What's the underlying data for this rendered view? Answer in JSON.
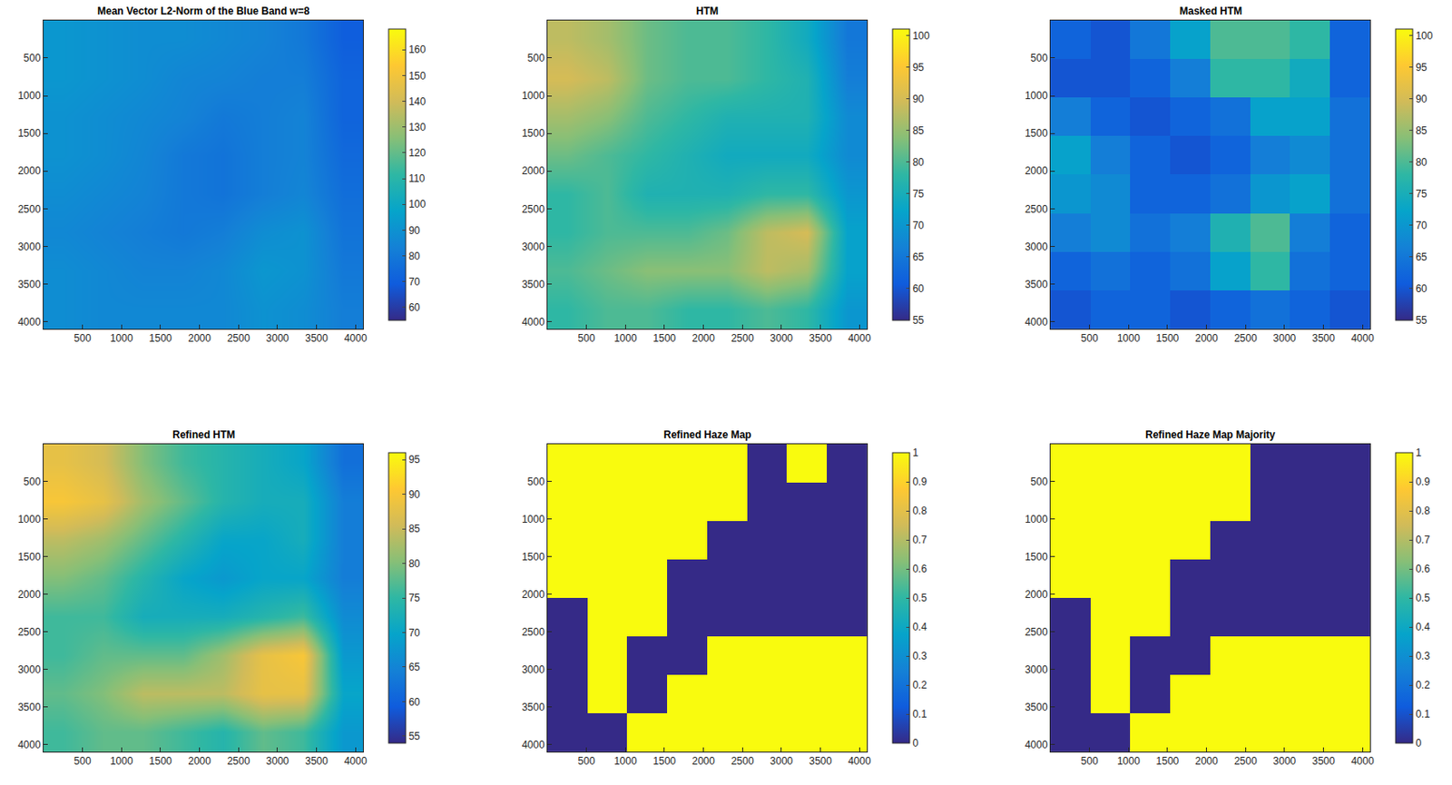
{
  "chart_data": [
    {
      "type": "heatmap",
      "title": "Mean Vector L2-Norm of the Blue Band w=8",
      "x": [
        256,
        768,
        1280,
        1792,
        2304,
        2816,
        3328,
        3840
      ],
      "y": [
        256,
        768,
        1280,
        1792,
        2304,
        2816,
        3328,
        3840
      ],
      "z": [
        [
          92,
          90,
          88,
          88,
          86,
          84,
          80,
          70
        ],
        [
          92,
          90,
          88,
          85,
          84,
          82,
          82,
          72
        ],
        [
          90,
          88,
          86,
          84,
          80,
          82,
          84,
          72
        ],
        [
          90,
          88,
          85,
          80,
          78,
          82,
          84,
          74
        ],
        [
          88,
          86,
          84,
          80,
          78,
          82,
          85,
          76
        ],
        [
          86,
          84,
          82,
          80,
          82,
          88,
          90,
          78
        ],
        [
          88,
          86,
          84,
          84,
          86,
          92,
          90,
          80
        ],
        [
          88,
          86,
          86,
          86,
          86,
          90,
          88,
          82
        ]
      ],
      "xlim": [
        1,
        4096
      ],
      "ylim": [
        4096,
        1
      ],
      "xticks": [
        500,
        1000,
        1500,
        2000,
        2500,
        3000,
        3500,
        4000
      ],
      "yticks": [
        500,
        1000,
        1500,
        2000,
        2500,
        3000,
        3500,
        4000
      ],
      "zlim": [
        55,
        168
      ],
      "zticks": [
        60,
        70,
        80,
        90,
        100,
        110,
        120,
        130,
        140,
        150,
        160
      ]
    },
    {
      "type": "heatmap",
      "title": "HTM",
      "x": [
        256,
        768,
        1280,
        1792,
        2304,
        2816,
        3328,
        3840
      ],
      "y": [
        256,
        768,
        1280,
        1792,
        2304,
        2816,
        3328,
        3840
      ],
      "z": [
        [
          88,
          86,
          82,
          80,
          80,
          78,
          74,
          65
        ],
        [
          90,
          88,
          82,
          80,
          80,
          78,
          76,
          66
        ],
        [
          86,
          84,
          80,
          78,
          76,
          76,
          76,
          68
        ],
        [
          82,
          80,
          78,
          76,
          74,
          74,
          74,
          68
        ],
        [
          78,
          80,
          76,
          76,
          76,
          78,
          78,
          70
        ],
        [
          78,
          80,
          80,
          80,
          82,
          88,
          90,
          72
        ],
        [
          80,
          82,
          84,
          84,
          84,
          88,
          86,
          72
        ],
        [
          78,
          80,
          80,
          78,
          78,
          80,
          78,
          70
        ]
      ],
      "xlim": [
        1,
        4096
      ],
      "ylim": [
        4096,
        1
      ],
      "xticks": [
        500,
        1000,
        1500,
        2000,
        2500,
        3000,
        3500,
        4000
      ],
      "yticks": [
        500,
        1000,
        1500,
        2000,
        2500,
        3000,
        3500,
        4000
      ],
      "zlim": [
        55,
        101
      ],
      "zticks": [
        55,
        60,
        65,
        70,
        75,
        80,
        85,
        90,
        95,
        100
      ]
    },
    {
      "type": "heatmap",
      "title": "Masked HTM",
      "x": [
        256,
        768,
        1280,
        1792,
        2304,
        2816,
        3328,
        3840
      ],
      "y": [
        256,
        768,
        1280,
        1792,
        2304,
        2816,
        3328,
        3840
      ],
      "z": [
        [
          62,
          60,
          65,
          72,
          80,
          80,
          78,
          62
        ],
        [
          60,
          60,
          62,
          66,
          78,
          78,
          74,
          62
        ],
        [
          66,
          62,
          60,
          62,
          64,
          72,
          72,
          64
        ],
        [
          72,
          66,
          62,
          60,
          62,
          66,
          68,
          64
        ],
        [
          70,
          68,
          62,
          62,
          64,
          70,
          72,
          64
        ],
        [
          66,
          68,
          64,
          66,
          76,
          80,
          66,
          62
        ],
        [
          62,
          64,
          62,
          64,
          72,
          78,
          64,
          62
        ],
        [
          60,
          62,
          62,
          60,
          62,
          64,
          62,
          60
        ]
      ],
      "xlim": [
        1,
        4096
      ],
      "ylim": [
        4096,
        1
      ],
      "xticks": [
        500,
        1000,
        1500,
        2000,
        2500,
        3000,
        3500,
        4000
      ],
      "yticks": [
        500,
        1000,
        1500,
        2000,
        2500,
        3000,
        3500,
        4000
      ],
      "zlim": [
        55,
        101
      ],
      "zticks": [
        55,
        60,
        65,
        70,
        75,
        80,
        85,
        90,
        95,
        100
      ]
    },
    {
      "type": "heatmap",
      "title": "Refined HTM",
      "x": [
        256,
        768,
        1280,
        1792,
        2304,
        2816,
        3328,
        3840
      ],
      "y": [
        256,
        768,
        1280,
        1792,
        2304,
        2816,
        3328,
        3840
      ],
      "z": [
        [
          88,
          86,
          80,
          76,
          74,
          72,
          70,
          62
        ],
        [
          90,
          88,
          82,
          78,
          74,
          72,
          72,
          64
        ],
        [
          84,
          82,
          78,
          74,
          70,
          70,
          72,
          64
        ],
        [
          80,
          78,
          74,
          70,
          68,
          70,
          70,
          64
        ],
        [
          76,
          76,
          72,
          72,
          72,
          74,
          76,
          66
        ],
        [
          76,
          78,
          78,
          78,
          82,
          88,
          90,
          68
        ],
        [
          78,
          80,
          84,
          84,
          84,
          88,
          88,
          70
        ],
        [
          76,
          78,
          78,
          76,
          74,
          78,
          76,
          68
        ]
      ],
      "xlim": [
        1,
        4096
      ],
      "ylim": [
        4096,
        1
      ],
      "xticks": [
        500,
        1000,
        1500,
        2000,
        2500,
        3000,
        3500,
        4000
      ],
      "yticks": [
        500,
        1000,
        1500,
        2000,
        2500,
        3000,
        3500,
        4000
      ],
      "zlim": [
        54,
        96
      ],
      "zticks": [
        55,
        60,
        65,
        70,
        75,
        80,
        85,
        90,
        95
      ]
    },
    {
      "type": "heatmap",
      "title": "Refined Haze Map",
      "x": [
        256,
        768,
        1280,
        1792,
        2304,
        2816,
        3328,
        3840
      ],
      "y": [
        256,
        768,
        1280,
        1792,
        2304,
        2816,
        3328,
        3840
      ],
      "z": [
        [
          1,
          1,
          1,
          1,
          1,
          0,
          1,
          0
        ],
        [
          1,
          1,
          1,
          1,
          1,
          0,
          0,
          0
        ],
        [
          1,
          1,
          1,
          1,
          0,
          0,
          0,
          0
        ],
        [
          1,
          1,
          1,
          0,
          0,
          0,
          0,
          0
        ],
        [
          0,
          1,
          1,
          0,
          0,
          0,
          0,
          0
        ],
        [
          0,
          1,
          0,
          0,
          1,
          1,
          1,
          1
        ],
        [
          0,
          1,
          0,
          1,
          1,
          1,
          1,
          1
        ],
        [
          0,
          0,
          1,
          1,
          1,
          1,
          1,
          1
        ]
      ],
      "xlim": [
        1,
        4096
      ],
      "ylim": [
        4096,
        1
      ],
      "xticks": [
        500,
        1000,
        1500,
        2000,
        2500,
        3000,
        3500,
        4000
      ],
      "yticks": [
        500,
        1000,
        1500,
        2000,
        2500,
        3000,
        3500,
        4000
      ],
      "zlim": [
        0,
        1
      ],
      "zticks": [
        0,
        0.1,
        0.2,
        0.3,
        0.4,
        0.5,
        0.6,
        0.7,
        0.8,
        0.9,
        1
      ]
    },
    {
      "type": "heatmap",
      "title": "Refined Haze Map Majority",
      "x": [
        256,
        768,
        1280,
        1792,
        2304,
        2816,
        3328,
        3840
      ],
      "y": [
        256,
        768,
        1280,
        1792,
        2304,
        2816,
        3328,
        3840
      ],
      "z": [
        [
          1,
          1,
          1,
          1,
          1,
          0,
          0,
          0
        ],
        [
          1,
          1,
          1,
          1,
          1,
          0,
          0,
          0
        ],
        [
          1,
          1,
          1,
          1,
          0,
          0,
          0,
          0
        ],
        [
          1,
          1,
          1,
          0,
          0,
          0,
          0,
          0
        ],
        [
          0,
          1,
          1,
          0,
          0,
          0,
          0,
          0
        ],
        [
          0,
          1,
          0,
          0,
          1,
          1,
          1,
          1
        ],
        [
          0,
          1,
          0,
          1,
          1,
          1,
          1,
          1
        ],
        [
          0,
          0,
          1,
          1,
          1,
          1,
          1,
          1
        ]
      ],
      "xlim": [
        1,
        4096
      ],
      "ylim": [
        4096,
        1
      ],
      "xticks": [
        500,
        1000,
        1500,
        2000,
        2500,
        3000,
        3500,
        4000
      ],
      "yticks": [
        500,
        1000,
        1500,
        2000,
        2500,
        3000,
        3500,
        4000
      ],
      "zlim": [
        0,
        1
      ],
      "zticks": [
        0,
        0.1,
        0.2,
        0.3,
        0.4,
        0.5,
        0.6,
        0.7,
        0.8,
        0.9,
        1
      ]
    }
  ]
}
